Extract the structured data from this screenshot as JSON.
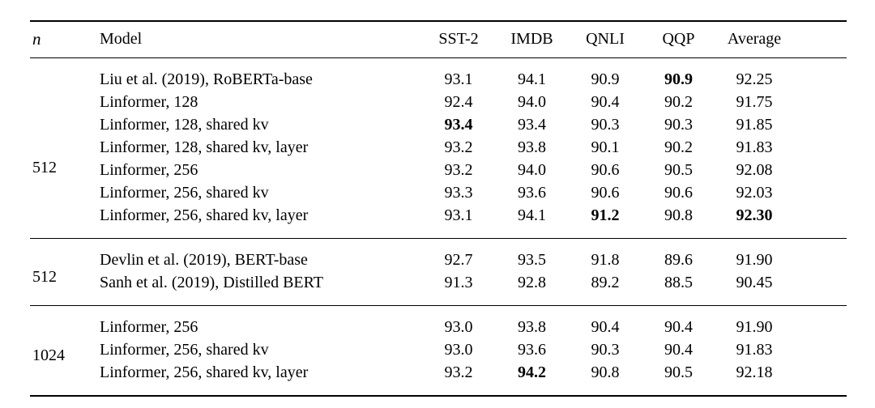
{
  "table": {
    "columns": [
      "n",
      "Model",
      "SST-2",
      "IMDB",
      "QNLI",
      "QQP",
      "Average"
    ],
    "groups": [
      {
        "n": "512",
        "rows": [
          {
            "model": "Liu et al. (2019), RoBERTa-base",
            "values": [
              "93.1",
              "94.1",
              "90.9",
              "90.9",
              "92.25"
            ],
            "bold": [
              3
            ]
          },
          {
            "model": "Linformer, 128",
            "values": [
              "92.4",
              "94.0",
              "90.4",
              "90.2",
              "91.75"
            ],
            "bold": []
          },
          {
            "model": "Linformer, 128, shared kv",
            "values": [
              "93.4",
              "93.4",
              "90.3",
              "90.3",
              "91.85"
            ],
            "bold": [
              0
            ]
          },
          {
            "model": "Linformer, 128, shared kv, layer",
            "values": [
              "93.2",
              "93.8",
              "90.1",
              "90.2",
              "91.83"
            ],
            "bold": []
          },
          {
            "model": "Linformer, 256",
            "values": [
              "93.2",
              "94.0",
              "90.6",
              "90.5",
              "92.08"
            ],
            "bold": []
          },
          {
            "model": "Linformer, 256, shared kv",
            "values": [
              "93.3",
              "93.6",
              "90.6",
              "90.6",
              "92.03"
            ],
            "bold": []
          },
          {
            "model": "Linformer, 256, shared kv, layer",
            "values": [
              "93.1",
              "94.1",
              "91.2",
              "90.8",
              "92.30"
            ],
            "bold": [
              2,
              4
            ]
          }
        ]
      },
      {
        "n": "512",
        "rows": [
          {
            "model": "Devlin et al. (2019), BERT-base",
            "values": [
              "92.7",
              "93.5",
              "91.8",
              "89.6",
              "91.90"
            ],
            "bold": []
          },
          {
            "model": "Sanh et al. (2019), Distilled BERT",
            "values": [
              "91.3",
              "92.8",
              "89.2",
              "88.5",
              "90.45"
            ],
            "bold": []
          }
        ]
      },
      {
        "n": "1024",
        "rows": [
          {
            "model": "Linformer, 256",
            "values": [
              "93.0",
              "93.8",
              "90.4",
              "90.4",
              "91.90"
            ],
            "bold": []
          },
          {
            "model": "Linformer, 256, shared kv",
            "values": [
              "93.0",
              "93.6",
              "90.3",
              "90.4",
              "91.83"
            ],
            "bold": []
          },
          {
            "model": "Linformer, 256, shared kv, layer",
            "values": [
              "93.2",
              "94.2",
              "90.8",
              "90.5",
              "92.18"
            ],
            "bold": [
              1
            ]
          }
        ]
      }
    ]
  }
}
